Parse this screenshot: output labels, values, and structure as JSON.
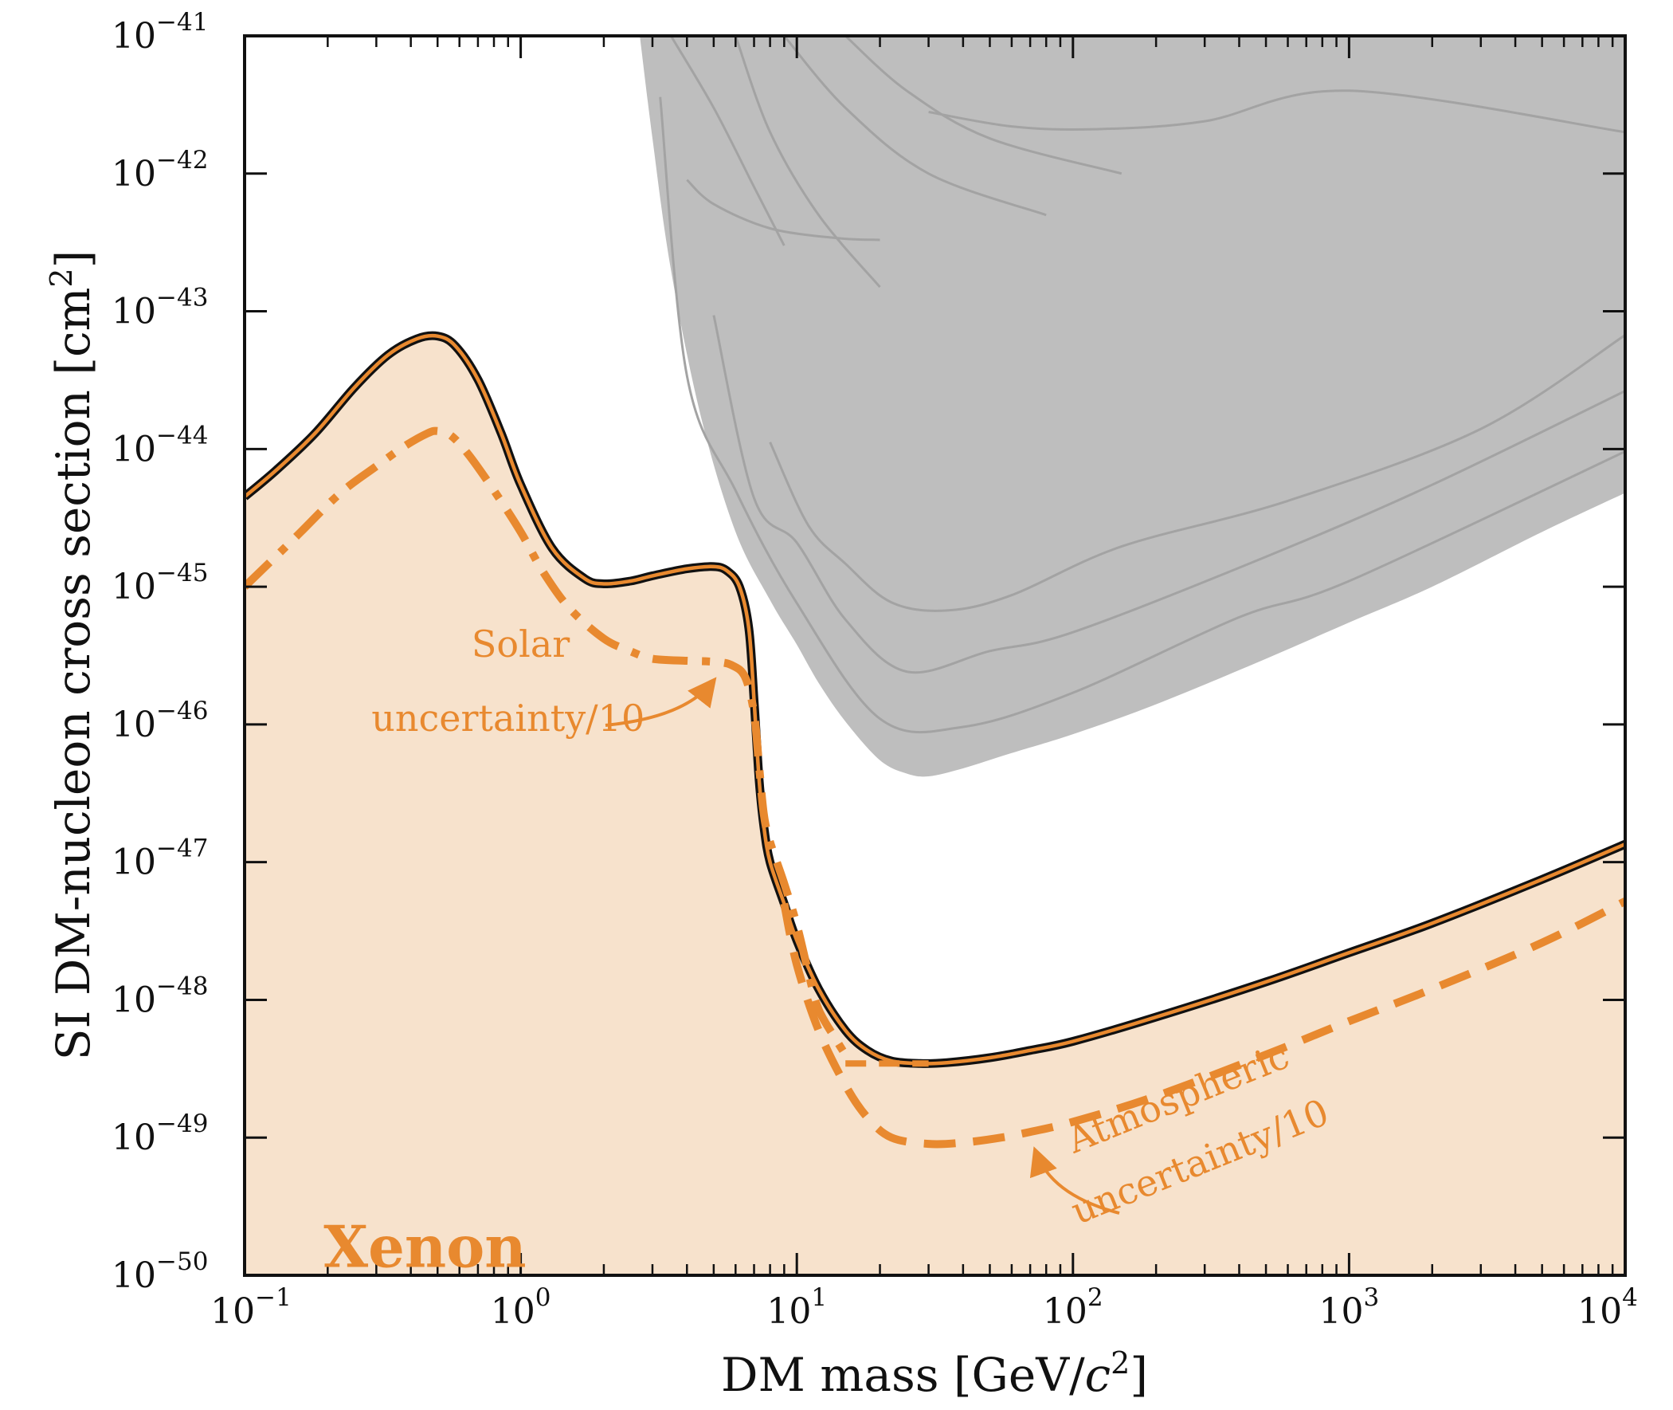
{
  "chart_data": {
    "type": "line",
    "xlabel": "DM mass [GeV/",
    "xlabel_c": "c",
    "xlabel_exp": "2",
    "xlabel_tail": "]",
    "ylabel": "SI DM-nucleon cross section [cm",
    "ylabel_exp": "2",
    "ylabel_tail": "]",
    "x_scale": "log",
    "y_scale": "log",
    "xlim": [
      0.1,
      10000
    ],
    "ylim": [
      1e-50,
      1e-41
    ],
    "x_ticks": [
      {
        "value": 0.1,
        "base": "10",
        "exp": "−1"
      },
      {
        "value": 1,
        "base": "10",
        "exp": "0"
      },
      {
        "value": 10,
        "base": "10",
        "exp": "1"
      },
      {
        "value": 100,
        "base": "10",
        "exp": "2"
      },
      {
        "value": 1000,
        "base": "10",
        "exp": "3"
      },
      {
        "value": 10000,
        "base": "10",
        "exp": "4"
      }
    ],
    "y_ticks": [
      {
        "value": 1e-50,
        "base": "10",
        "exp": "−50"
      },
      {
        "value": 1e-49,
        "base": "10",
        "exp": "−49"
      },
      {
        "value": 1e-48,
        "base": "10",
        "exp": "−48"
      },
      {
        "value": 1e-47,
        "base": "10",
        "exp": "−47"
      },
      {
        "value": 1e-46,
        "base": "10",
        "exp": "−46"
      },
      {
        "value": 1e-45,
        "base": "10",
        "exp": "−45"
      },
      {
        "value": 1e-44,
        "base": "10",
        "exp": "−44"
      },
      {
        "value": 1e-43,
        "base": "10",
        "exp": "−43"
      },
      {
        "value": 1e-42,
        "base": "10",
        "exp": "−42"
      },
      {
        "value": 1e-41,
        "base": "10",
        "exp": "−41"
      }
    ],
    "grid": false,
    "colors": {
      "accent": "#E8892F",
      "fill": "#F7E2CC",
      "excluded": "#BEBEBE",
      "excluded_lines": "#A3A3A3",
      "outline": "#111111"
    },
    "series": [
      {
        "style": "solid-orange-black-outline",
        "x": [
          0.1,
          0.13,
          0.18,
          0.25,
          0.33,
          0.42,
          0.5,
          0.58,
          0.7,
          0.85,
          1.0,
          1.3,
          1.7,
          2.0,
          2.5,
          3.0,
          4.0,
          5.0,
          5.6,
          6.2,
          6.7,
          7.0,
          7.3,
          7.6,
          8.0,
          9.0,
          10.0,
          12.0,
          15.0,
          18.0,
          22.0,
          28.0,
          35.0,
          50.0,
          70.0,
          100.0,
          200.0,
          500.0,
          1000.0,
          2000.0,
          5000.0,
          10000.0
        ],
        "y": [
          4.5e-45,
          7e-45,
          1.3e-44,
          2.8e-44,
          4.8e-44,
          6.3e-44,
          6.6e-44,
          5.6e-44,
          3.2e-44,
          1.3e-44,
          5.5e-45,
          1.9e-45,
          1.15e-45,
          1.05e-45,
          1.1e-45,
          1.2e-45,
          1.35e-45,
          1.4e-45,
          1.3e-45,
          1e-45,
          5e-46,
          1.5e-46,
          4e-47,
          1.8e-47,
          1e-47,
          5e-48,
          2.7e-48,
          1.2e-48,
          6e-49,
          4.3e-49,
          3.6e-49,
          3.45e-49,
          3.5e-49,
          3.8e-49,
          4.3e-49,
          5e-49,
          7.5e-49,
          1.35e-48,
          2.2e-48,
          3.6e-48,
          7.5e-48,
          1.35e-47
        ]
      },
      {
        "style": "dash-dot",
        "x": [
          0.1,
          0.15,
          0.22,
          0.3,
          0.38,
          0.46,
          0.5,
          0.56,
          0.65,
          0.8,
          1.0,
          1.2,
          1.5,
          2.0,
          2.5,
          3.0,
          4.0,
          5.0,
          5.8,
          6.5,
          7.0,
          7.3,
          7.6,
          8.0,
          9.0,
          10.0,
          11.0,
          12.0,
          14.0,
          15.0
        ],
        "y": [
          1e-45,
          2.2e-45,
          4.7e-45,
          7.5e-45,
          1.05e-44,
          1.3e-44,
          1.35e-44,
          1.25e-44,
          9e-45,
          5e-45,
          2.5e-45,
          1.3e-45,
          7e-46,
          4.2e-46,
          3.4e-46,
          3e-46,
          2.9e-46,
          2.85e-46,
          2.7e-46,
          2.2e-46,
          1.2e-46,
          5e-47,
          2.2e-47,
          1.4e-47,
          7e-48,
          3.5e-48,
          1.6e-48,
          8.5e-49,
          5e-49,
          4e-49
        ]
      },
      {
        "style": "dashed",
        "x": [
          9.0,
          10.0,
          12.0,
          15.0,
          18.0,
          22.0,
          30.0,
          40.0,
          55.0,
          70.0,
          100.0,
          200.0,
          500.0,
          1000.0,
          2000.0,
          5000.0,
          10000.0
        ],
        "y": [
          5e-48,
          1.8e-48,
          6e-49,
          2.4e-49,
          1.4e-49,
          1e-49,
          9e-50,
          9.2e-50,
          1e-49,
          1.1e-49,
          1.3e-49,
          2e-49,
          4e-49,
          7e-49,
          1.2e-48,
          2.6e-48,
          5.2e-48
        ]
      },
      {
        "style": "dashed-short",
        "x": [
          15.0,
          20.0,
          25.0,
          30.0
        ],
        "y": [
          3.45e-49,
          3.45e-49,
          3.45e-49,
          3.45e-49
        ]
      }
    ],
    "excluded_region": {
      "x": [
        2.7,
        3.0,
        3.5,
        4.5,
        6.0,
        8.0,
        10.0,
        12.0,
        15.0,
        20.0,
        25.0,
        30.0,
        40.0,
        60.0,
        100.0,
        200.0,
        500.0,
        1000.0,
        2000.0,
        5000.0,
        10000.0
      ],
      "y": [
        1e-41,
        1.8e-42,
        2e-43,
        1.7e-44,
        2.5e-45,
        8e-46,
        3.8e-46,
        2e-46,
        1.05e-46,
        5.5e-47,
        4.4e-47,
        4.2e-47,
        4.8e-47,
        6.2e-47,
        8.5e-47,
        1.4e-46,
        3e-46,
        5.5e-46,
        1e-45,
        2.5e-45,
        4.8e-45
      ]
    },
    "annotations": [
      {
        "text": "Solar",
        "x": 1.0,
        "y": 3.1e-46
      },
      {
        "text": "uncertainty/10",
        "x": 0.9,
        "y": 9e-47
      },
      {
        "text": "Atmospheric",
        "x": 250,
        "y": 1.6e-49,
        "rotate": -22
      },
      {
        "text": "uncertainty/10",
        "x": 300,
        "y": 5.5e-50,
        "rotate": -22
      },
      {
        "text": "Xenon",
        "x": 0.45,
        "y": 1.15e-50
      }
    ]
  }
}
